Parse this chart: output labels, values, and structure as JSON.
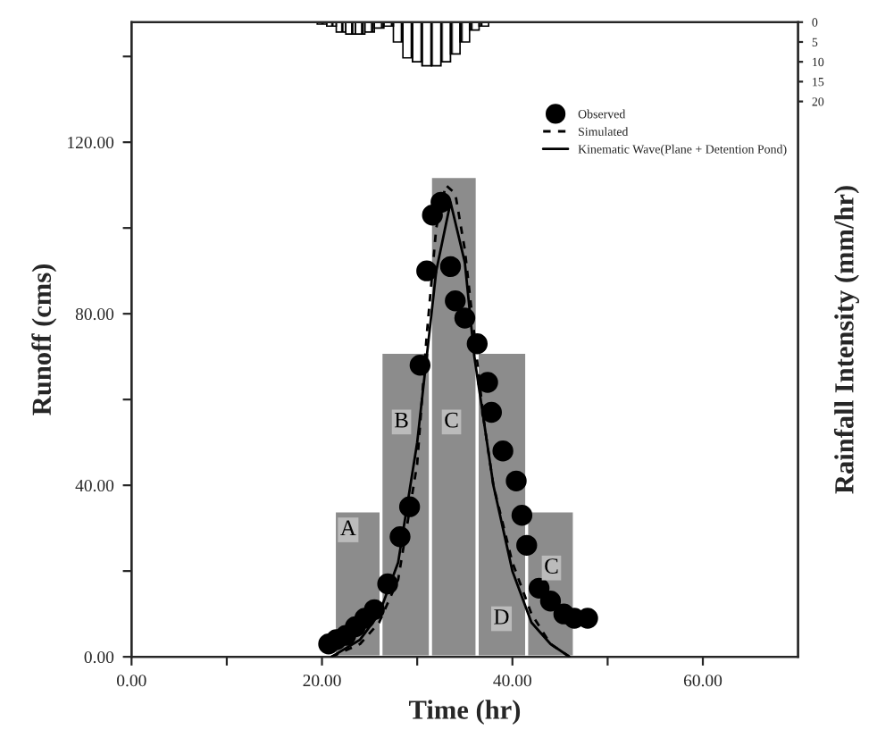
{
  "chart_data": {
    "type": "line",
    "xlabel": "Time (hr)",
    "ylabel": "Runoff (cms)",
    "y2label": "Rainfall Intensity (mm/hr)",
    "xlim": [
      0,
      70
    ],
    "xticks": [
      {
        "value": 0,
        "label": "0.00"
      },
      {
        "value": 10,
        "label": null
      },
      {
        "value": 20,
        "label": "20.00"
      },
      {
        "value": 30,
        "label": null
      },
      {
        "value": 40,
        "label": "40.00"
      },
      {
        "value": 50,
        "label": null
      },
      {
        "value": 60,
        "label": "60.00"
      }
    ],
    "ylim": [
      0,
      148
    ],
    "yticks": [
      {
        "value": 0,
        "label": "0.00"
      },
      {
        "value": 20,
        "label": null
      },
      {
        "value": 40,
        "label": "40.00"
      },
      {
        "value": 60,
        "label": null
      },
      {
        "value": 80,
        "label": "80.00"
      },
      {
        "value": 100,
        "label": null
      },
      {
        "value": 120,
        "label": "120.00"
      },
      {
        "value": 140,
        "label": null
      }
    ],
    "y2lim": [
      160,
      0
    ],
    "y2ticks": [
      0,
      5,
      10,
      15,
      20
    ],
    "legend": "top right",
    "grid": false,
    "series": [
      {
        "type": "bar",
        "axis": "y2",
        "color": "#000000",
        "x": [
          20,
          21,
          22,
          23,
          24,
          25,
          26,
          27,
          28,
          29,
          30,
          31,
          32,
          33,
          34,
          35,
          36,
          37
        ],
        "values": [
          0.5,
          1,
          2.5,
          3,
          3,
          2.5,
          1.5,
          1,
          5,
          9,
          10,
          11,
          11,
          10,
          8,
          5,
          2,
          1
        ]
      },
      {
        "type": "histogram",
        "color": "#8c8c8c",
        "bins": [
          21.3,
          26.2,
          31.4,
          36.3,
          41.5,
          46.5
        ],
        "values": [
          34,
          71,
          112,
          71,
          34
        ]
      },
      {
        "type": "scatter",
        "name": "Observed",
        "color": "#000000",
        "marker": "circle",
        "x": [
          20.7,
          21.5,
          22.5,
          23.5,
          24.5,
          25.5,
          26.9,
          28.2,
          29.2,
          30.3,
          31,
          31.6,
          32.5,
          33.5,
          34,
          35,
          36.3,
          37.4,
          37.8,
          39,
          40.4,
          41,
          41.5,
          42.8,
          44,
          45.4,
          46.5,
          47.9
        ],
        "values": [
          3,
          4,
          5,
          7,
          9,
          11,
          17,
          28,
          35,
          68,
          90,
          103,
          106,
          91,
          83,
          79,
          73,
          64,
          57,
          48,
          41,
          33,
          26,
          16,
          13,
          10,
          9,
          9
        ]
      },
      {
        "name": "Simulated",
        "color": "#000000",
        "line_style": "dashed",
        "x": [
          21,
          24,
          26,
          28,
          30,
          31,
          32,
          33,
          34,
          35,
          36,
          37,
          38,
          40,
          42,
          44,
          46
        ],
        "values": [
          0,
          3,
          8,
          18,
          45,
          75,
          100,
          110,
          108,
          95,
          75,
          55,
          40,
          22,
          10,
          3,
          0
        ]
      },
      {
        "name": "Kinematic Wave(Plane + Detention Pond)",
        "color": "#000000",
        "line_style": "solid",
        "x": [
          21,
          24,
          26,
          28,
          30,
          32,
          33.5,
          35,
          36,
          38,
          40,
          42,
          44,
          46
        ],
        "values": [
          0,
          4,
          10,
          22,
          50,
          90,
          106,
          92,
          70,
          40,
          20,
          8,
          3,
          0
        ]
      }
    ],
    "annotations": [
      "A",
      "B",
      "C",
      "D",
      "C"
    ]
  }
}
